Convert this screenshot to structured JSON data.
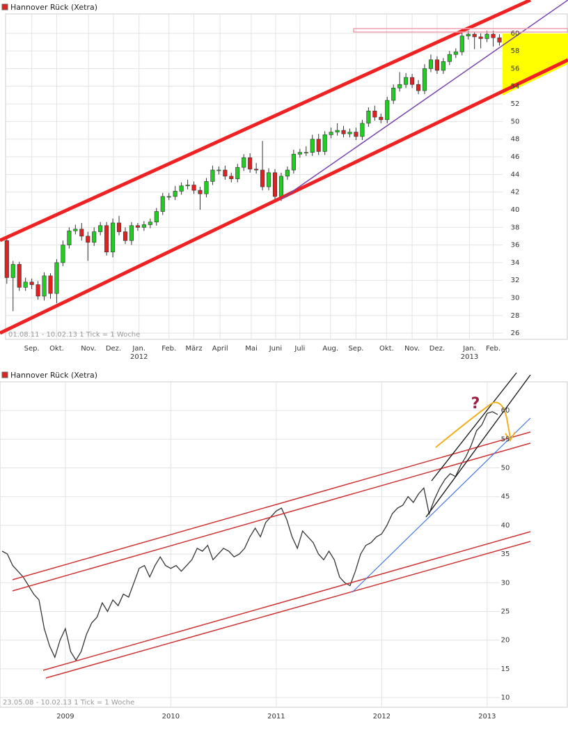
{
  "chart_data": [
    {
      "type": "candlestick",
      "title": "Hannover Rück (Xetra)",
      "footer": "01.08.11 - 10.02.13   1 Tick = 1 Woche",
      "color_up": "#22cc22",
      "color_down": "#dd2222",
      "open": [
        36.5,
        32.3,
        33.8,
        31.2,
        31.8,
        31.5,
        30.2,
        32.5,
        30.5,
        34,
        36,
        37.6,
        37.8,
        37,
        36.3,
        37.5,
        38.2,
        35.2,
        38.5,
        37.5,
        36.5,
        38.2,
        38,
        38.3,
        38.6,
        39.8,
        41.5,
        41.5,
        42.1,
        42.7,
        42.8,
        42.2,
        41.8,
        43.2,
        44.5,
        44.5,
        43.8,
        43.5,
        44.8,
        45.9,
        44.6,
        44.5,
        42.6,
        44.2,
        41.5,
        43.8,
        44.5,
        46.3,
        46.5,
        46.5,
        48,
        46.6,
        48.5,
        48.8,
        49,
        48.6,
        48.8,
        48.3,
        49.8,
        51.2,
        50.5,
        50.2,
        52.4,
        53.8,
        54.2,
        55,
        54.2,
        53.5,
        56,
        57,
        55.8,
        56.8,
        57.6,
        57.9,
        59.7,
        59.9,
        59.6,
        59.4,
        59.9,
        59.5
      ],
      "high": [
        36.8,
        34.2,
        34.1,
        32.3,
        32.2,
        31.9,
        32.9,
        32.8,
        34.4,
        36.5,
        38,
        38.3,
        38.5,
        37.5,
        38,
        38.6,
        38.6,
        39,
        39.3,
        38,
        38.6,
        38.5,
        38.7,
        39,
        40.2,
        41.9,
        41.9,
        42.7,
        43.1,
        43.4,
        43.2,
        42.6,
        43.6,
        45,
        44.9,
        45,
        44.2,
        45.2,
        46.3,
        46.4,
        45.3,
        47.8,
        44.7,
        44.6,
        44.2,
        44.9,
        46.8,
        46.9,
        47.2,
        48.5,
        48.6,
        48.9,
        49.3,
        49.8,
        49.5,
        49.2,
        49.3,
        50.2,
        51.6,
        51.8,
        50.9,
        52.8,
        54.2,
        55.6,
        55.5,
        55.4,
        54.7,
        56.5,
        57.6,
        57.4,
        57.2,
        58,
        58.3,
        60.1,
        60.3,
        60.2,
        60,
        60.3,
        60.3,
        59.9
      ],
      "low": [
        31.6,
        28.5,
        30.8,
        30.8,
        31,
        29.8,
        29.7,
        29.9,
        29.4,
        33.6,
        35.6,
        37.2,
        36.5,
        34.2,
        35.9,
        37.1,
        34.8,
        34.6,
        37.1,
        36.1,
        36,
        37.6,
        37.6,
        37.9,
        38.2,
        39.4,
        41.1,
        41.1,
        41.7,
        42.3,
        41.8,
        40,
        41.4,
        42.8,
        44,
        43.4,
        43.1,
        43.1,
        44.4,
        44.2,
        44.1,
        42.2,
        42.2,
        41.1,
        41,
        43.4,
        44.1,
        45.9,
        46.1,
        46.1,
        46.2,
        46.2,
        48.1,
        48.4,
        48.2,
        48.2,
        47.9,
        47.9,
        49.4,
        50.1,
        49.8,
        49.8,
        52,
        53.4,
        53.8,
        53.8,
        53.1,
        53.1,
        55.6,
        55.4,
        55.4,
        56.4,
        57.2,
        57.5,
        59.3,
        58.2,
        58.3,
        59,
        58.5,
        58.6
      ],
      "close": [
        32.3,
        33.8,
        31.2,
        31.8,
        31.5,
        30.2,
        32.5,
        30.5,
        34,
        36,
        37.6,
        37.8,
        37,
        36.3,
        37.5,
        38.2,
        35.2,
        38.5,
        37.5,
        36.5,
        38.2,
        38,
        38.3,
        38.6,
        39.8,
        41.5,
        41.5,
        42.1,
        42.7,
        42.8,
        42.2,
        41.8,
        43.2,
        44.5,
        44.5,
        43.8,
        43.5,
        44.8,
        45.9,
        44.6,
        44.5,
        42.6,
        44.2,
        41.5,
        43.8,
        44.5,
        46.3,
        46.5,
        46.5,
        48,
        46.6,
        48.5,
        48.8,
        49,
        48.6,
        48.8,
        48.3,
        49.8,
        51.2,
        50.5,
        50.2,
        52.4,
        53.8,
        54.2,
        55,
        54.2,
        53.5,
        56,
        57,
        55.8,
        56.8,
        57.6,
        57.9,
        59.7,
        59.9,
        59.6,
        59.4,
        59.9,
        59.5,
        59
      ],
      "xlim": [
        -0.2,
        79.5
      ],
      "xticks": [
        {
          "value": 4,
          "label": "Sep."
        },
        {
          "value": 8,
          "label": "Okt."
        },
        {
          "value": 13.1,
          "label": "Nov."
        },
        {
          "value": 17.1,
          "label": "Dez."
        },
        {
          "value": 21.2,
          "label": "Jan."
        },
        {
          "value": 26,
          "label": "Feb."
        },
        {
          "value": 30,
          "label": "März"
        },
        {
          "value": 34.2,
          "label": "April"
        },
        {
          "value": 39.2,
          "label": "Mai"
        },
        {
          "value": 43.1,
          "label": "Juni"
        },
        {
          "value": 47,
          "label": "Juli"
        },
        {
          "value": 51.9,
          "label": "Aug."
        },
        {
          "value": 56,
          "label": "Sep."
        },
        {
          "value": 60.9,
          "label": "Okt."
        },
        {
          "value": 65,
          "label": "Nov."
        },
        {
          "value": 69,
          "label": "Dez."
        },
        {
          "value": 74.2,
          "label": "Jan."
        },
        {
          "value": 78,
          "label": "Feb."
        }
      ],
      "xticks2": [
        {
          "value": 21.2,
          "label": "2012"
        },
        {
          "value": 74.2,
          "label": "2013"
        }
      ],
      "ylim": [
        25.3,
        62.2
      ],
      "yticks": [
        26,
        28,
        30,
        32,
        34,
        36,
        38,
        40,
        42,
        44,
        46,
        48,
        50,
        52,
        54,
        56,
        58,
        60
      ],
      "grid": true
    },
    {
      "type": "line",
      "title": "Hannover Rück (Xetra)",
      "footer": "23.05.08 - 10.02.13   1 Tick = 1 Woche",
      "color": "#333333",
      "annotation": "?",
      "x": [
        2008.4,
        2008.45,
        2008.5,
        2008.55,
        2008.6,
        2008.65,
        2008.7,
        2008.75,
        2008.8,
        2008.85,
        2008.9,
        2008.95,
        2009.0,
        2009.05,
        2009.1,
        2009.15,
        2009.2,
        2009.25,
        2009.3,
        2009.35,
        2009.4,
        2009.45,
        2009.5,
        2009.55,
        2009.6,
        2009.65,
        2009.7,
        2009.75,
        2009.8,
        2009.85,
        2009.9,
        2009.95,
        2010.0,
        2010.05,
        2010.1,
        2010.15,
        2010.2,
        2010.25,
        2010.3,
        2010.35,
        2010.4,
        2010.45,
        2010.5,
        2010.55,
        2010.6,
        2010.65,
        2010.7,
        2010.75,
        2010.8,
        2010.85,
        2010.9,
        2010.95,
        2011.0,
        2011.05,
        2011.1,
        2011.15,
        2011.2,
        2011.25,
        2011.3,
        2011.35,
        2011.4,
        2011.45,
        2011.5,
        2011.55,
        2011.6,
        2011.65,
        2011.7,
        2011.75,
        2011.8,
        2011.85,
        2011.9,
        2011.95,
        2012.0,
        2012.05,
        2012.1,
        2012.15,
        2012.2,
        2012.25,
        2012.3,
        2012.35,
        2012.4,
        2012.45,
        2012.5,
        2012.55,
        2012.6,
        2012.65,
        2012.7,
        2012.75,
        2012.8,
        2012.85,
        2012.9,
        2012.95,
        2013.0,
        2013.05,
        2013.1
      ],
      "values": [
        35.5,
        35,
        33,
        32,
        31,
        29.5,
        28,
        27,
        22,
        19,
        17,
        20,
        22,
        18,
        16.5,
        18,
        21,
        23,
        24,
        26.5,
        25,
        27,
        26,
        28,
        27.5,
        30,
        32.5,
        33,
        31,
        33,
        34.5,
        33,
        32.5,
        33,
        32,
        33,
        34,
        36,
        35.5,
        36.5,
        34,
        35,
        36,
        35.5,
        34.5,
        35,
        36,
        38,
        39.5,
        38,
        40.5,
        41.5,
        42.5,
        43,
        41,
        38,
        36,
        39,
        38,
        37,
        35,
        34,
        35.5,
        34,
        31,
        30,
        29.5,
        32,
        35,
        36.5,
        37,
        38,
        38.5,
        40,
        42,
        43,
        43.5,
        45,
        44,
        45.5,
        46.5,
        42,
        44.5,
        46.5,
        48,
        49,
        48.5,
        50.5,
        52,
        54,
        56.5,
        57.5,
        59.5,
        59.8,
        59.3
      ],
      "xlim": [
        2008.38,
        2013.12
      ],
      "xticks": [
        2009,
        2010,
        2011,
        2012,
        2013
      ],
      "ylim": [
        8.3,
        65
      ],
      "yticks": [
        10,
        15,
        20,
        25,
        30,
        35,
        40,
        45,
        50,
        55,
        60
      ],
      "grid": true
    }
  ]
}
